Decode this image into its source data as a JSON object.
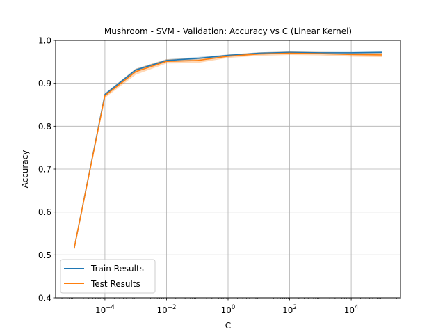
{
  "chart_data": {
    "type": "line",
    "title": "Mushroom - SVM - Validation: Accuracy vs C (Linear Kernel)",
    "xlabel": "C",
    "ylabel": "Accuracy",
    "xscale": "log",
    "xlim": [
      2.5e-06,
      400000
    ],
    "ylim": [
      0.4,
      1.0
    ],
    "grid": true,
    "legend_position": "lower-left",
    "x": [
      1e-05,
      0.0001,
      0.001,
      0.01,
      0.1,
      1,
      10,
      100,
      1000,
      10000,
      100000
    ],
    "x_tick_labels": [
      {
        "base": "10",
        "exp": "−4",
        "value": 0.0001
      },
      {
        "base": "10",
        "exp": "−2",
        "value": 0.01
      },
      {
        "base": "10",
        "exp": "0",
        "value": 1
      },
      {
        "base": "10",
        "exp": "2",
        "value": 100
      },
      {
        "base": "10",
        "exp": "4",
        "value": 10000
      }
    ],
    "y_tick_labels": [
      "0.4",
      "0.5",
      "0.6",
      "0.7",
      "0.8",
      "0.9",
      "1.0"
    ],
    "series": [
      {
        "name": "Train Results",
        "color": "#1f77b4",
        "values": [
          0.515,
          0.874,
          0.931,
          0.953,
          0.958,
          0.965,
          0.97,
          0.972,
          0.971,
          0.971,
          0.972
        ],
        "band": [
          0.002,
          0.003,
          0.003,
          0.003,
          0.003,
          0.002,
          0.002,
          0.002,
          0.002,
          0.002,
          0.002
        ]
      },
      {
        "name": "Test Results",
        "color": "#ff7f0e",
        "values": [
          0.515,
          0.871,
          0.927,
          0.951,
          0.953,
          0.963,
          0.968,
          0.97,
          0.969,
          0.967,
          0.966
        ],
        "band": [
          0.003,
          0.005,
          0.007,
          0.005,
          0.006,
          0.004,
          0.004,
          0.004,
          0.004,
          0.005,
          0.005
        ]
      }
    ]
  }
}
